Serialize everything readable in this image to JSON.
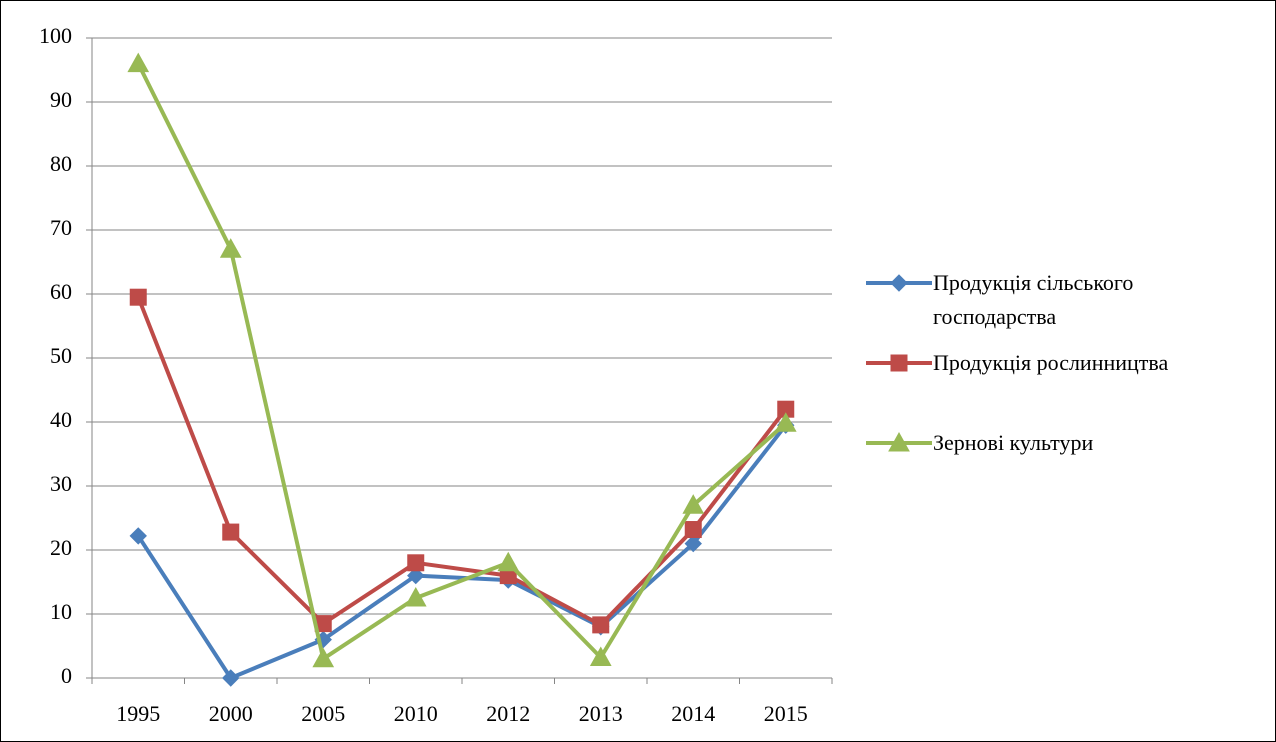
{
  "chart_data": {
    "type": "line",
    "categories": [
      "1995",
      "2000",
      "2005",
      "2010",
      "2012",
      "2013",
      "2014",
      "2015"
    ],
    "series": [
      {
        "name": "Продукція сільського господарства",
        "color": "#4a7ebb",
        "marker": "diamond",
        "values": [
          22.2,
          0,
          6,
          16,
          15.3,
          8,
          21,
          39.5
        ]
      },
      {
        "name": "Продукція рослинництва",
        "color": "#be4b48",
        "marker": "square",
        "values": [
          59.5,
          22.8,
          8.5,
          18,
          16,
          8.3,
          23.2,
          42
        ]
      },
      {
        "name": "Зернові культури",
        "color": "#98b954",
        "marker": "triangle",
        "values": [
          96,
          67,
          3,
          12.5,
          18,
          3.2,
          27,
          39.8
        ]
      }
    ],
    "ylim": [
      0,
      100
    ],
    "yticks": [
      0,
      10,
      20,
      30,
      40,
      50,
      60,
      70,
      80,
      90,
      100
    ],
    "grid": true,
    "legend": "right"
  }
}
